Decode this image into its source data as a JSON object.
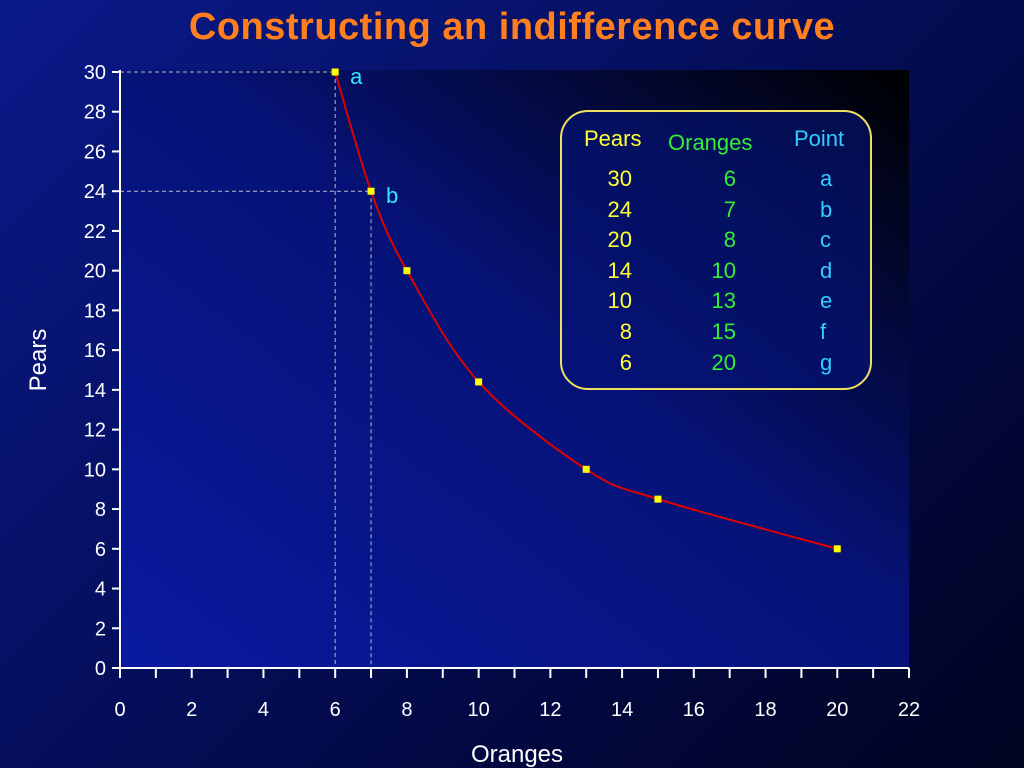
{
  "title": "Constructing an indifference curve",
  "chart_data": {
    "type": "line",
    "xlabel": "Oranges",
    "ylabel": "Pears",
    "xlim": [
      0,
      22
    ],
    "ylim": [
      0,
      30
    ],
    "x_ticks": [
      0,
      2,
      4,
      6,
      8,
      10,
      12,
      14,
      16,
      18,
      20,
      22
    ],
    "y_ticks": [
      0,
      2,
      4,
      6,
      8,
      10,
      12,
      14,
      16,
      18,
      20,
      22,
      24,
      26,
      28,
      30
    ],
    "points": [
      {
        "x": 6,
        "y": 30,
        "label": "a"
      },
      {
        "x": 7,
        "y": 24,
        "label": "b"
      },
      {
        "x": 8,
        "y": 20,
        "label": ""
      },
      {
        "x": 10,
        "y": 14.4,
        "label": ""
      },
      {
        "x": 13,
        "y": 10,
        "label": ""
      },
      {
        "x": 15,
        "y": 8.5,
        "label": ""
      },
      {
        "x": 20,
        "y": 6,
        "label": ""
      }
    ],
    "guides": [
      {
        "x": 6,
        "y": 30
      },
      {
        "x": 7,
        "y": 24
      }
    ],
    "colors": {
      "curve": "#dd0000",
      "marker": "#ffff00",
      "guide": "#bbbbbb",
      "plot_bg": "#000000"
    }
  },
  "table": {
    "headers": {
      "pears": "Pears",
      "oranges": "Oranges",
      "point": "Point"
    },
    "rows": [
      {
        "pears": "30",
        "oranges": "6",
        "point": "a"
      },
      {
        "pears": "24",
        "oranges": "7",
        "point": "b"
      },
      {
        "pears": "20",
        "oranges": "8",
        "point": "c"
      },
      {
        "pears": "14",
        "oranges": "10",
        "point": "d"
      },
      {
        "pears": "10",
        "oranges": "13",
        "point": "e"
      },
      {
        "pears": "8",
        "oranges": "15",
        "point": "f"
      },
      {
        "pears": "6",
        "oranges": "20",
        "point": "g"
      }
    ]
  }
}
